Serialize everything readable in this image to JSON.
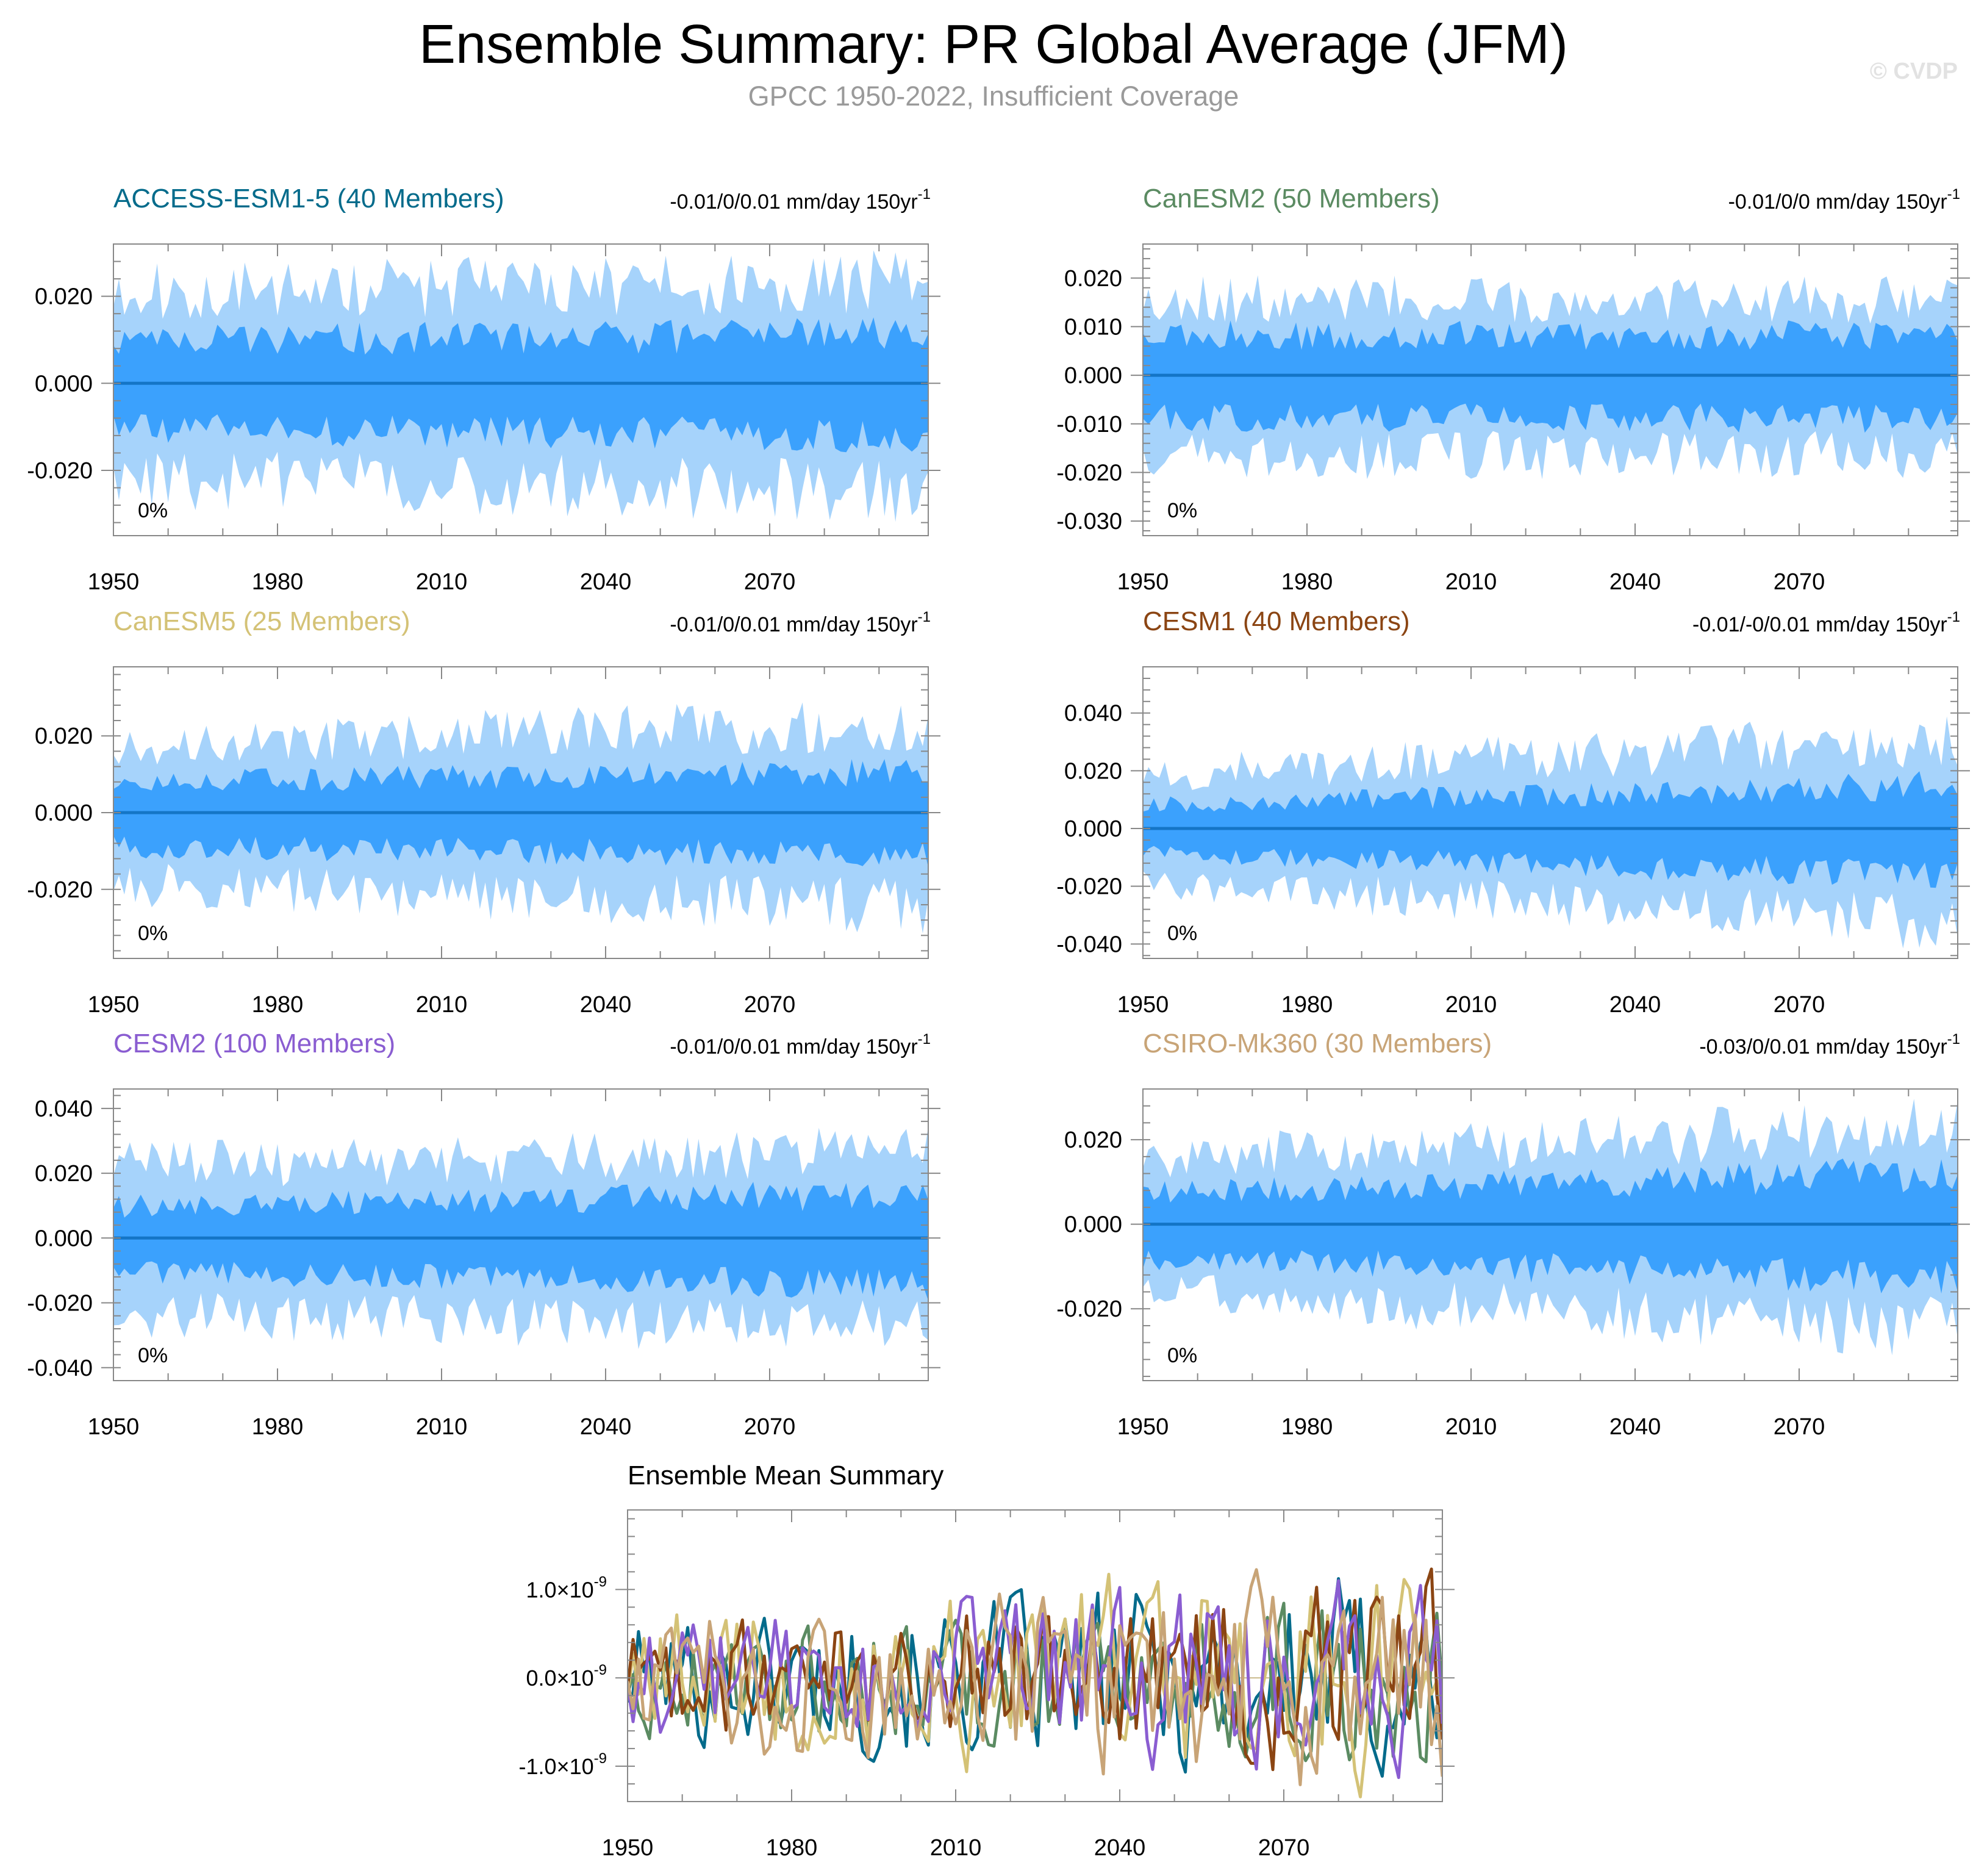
{
  "title": "Ensemble Summary: PR Global Average (JFM)",
  "subtitle": "GPCC 1950-2022, Insufficient Coverage",
  "watermark": "© CVDP",
  "colors": {
    "outer_band": "#a6d3fb",
    "inner_band": "#3ba1fd",
    "mean_line": "#1475c6",
    "axis": "#888888"
  },
  "chart_data": [
    {
      "type": "area",
      "panel": "ACCESS-ESM1-5",
      "title": "ACCESS-ESM1-5 (40 Members)",
      "title_color": "#046b8b",
      "trend_label": "-0.01/0/0.01 mm/day 150yr",
      "trend_sup": "-1",
      "percent_label": "0%",
      "x_range": [
        1950,
        2099
      ],
      "xticks": [
        1950,
        1980,
        2010,
        2040,
        2070
      ],
      "ylim": [
        -0.035,
        0.032
      ],
      "yticks": [
        0.02,
        0,
        -0.02
      ],
      "ytick_labels": [
        "0.020",
        "0.000",
        "-0.020"
      ],
      "ytick_minor_step": 0.004,
      "outer_amp": [
        0.027,
        0.03
      ],
      "inner_amp": [
        0.013,
        0.015
      ],
      "drift": 0.0,
      "seed": 11
    },
    {
      "type": "area",
      "panel": "CanESM2",
      "title": "CanESM2 (50 Members)",
      "title_color": "#5b8b62",
      "trend_label": "-0.01/0/0 mm/day 150yr",
      "trend_sup": "-1",
      "percent_label": "0%",
      "x_range": [
        1950,
        2099
      ],
      "xticks": [
        1950,
        1980,
        2010,
        2040,
        2070
      ],
      "ylim": [
        -0.033,
        0.027
      ],
      "yticks": [
        0.02,
        0.01,
        0,
        -0.01,
        -0.02,
        -0.03
      ],
      "ytick_labels": [
        "0.020",
        "0.010",
        "0.000",
        "-0.010",
        "-0.020",
        "-0.030"
      ],
      "ytick_minor_step": 0.002,
      "outer_amp": [
        0.02,
        0.02
      ],
      "inner_amp": [
        0.011,
        0.011
      ],
      "drift": 0.0,
      "seed": 23
    },
    {
      "type": "area",
      "panel": "CanESM5",
      "title": "CanESM5 (25 Members)",
      "title_color": "#d4c276",
      "trend_label": "-0.01/0/0.01 mm/day 150yr",
      "trend_sup": "-1",
      "percent_label": "0%",
      "x_range": [
        1950,
        2099
      ],
      "xticks": [
        1950,
        1980,
        2010,
        2040,
        2070
      ],
      "ylim": [
        -0.038,
        0.038
      ],
      "yticks": [
        0.02,
        0,
        -0.02
      ],
      "ytick_labels": [
        "0.020",
        "0.000",
        "-0.020"
      ],
      "ytick_minor_step": 0.004,
      "outer_amp": [
        0.023,
        0.03
      ],
      "inner_amp": [
        0.011,
        0.014
      ],
      "drift": 0.0,
      "seed": 37
    },
    {
      "type": "area",
      "panel": "CESM1",
      "title": "CESM1 (40 Members)",
      "title_color": "#8b4513",
      "trend_label": "-0.01/-0/0.01 mm/day 150yr",
      "trend_sup": "-1",
      "percent_label": "0%",
      "x_range": [
        1950,
        2099
      ],
      "xticks": [
        1950,
        1980,
        2010,
        2040,
        2070
      ],
      "ylim": [
        -0.045,
        0.056
      ],
      "yticks": [
        0.04,
        0.02,
        0,
        -0.02,
        -0.04
      ],
      "ytick_labels": [
        "0.040",
        "0.020",
        "0.000",
        "-0.020",
        "-0.040"
      ],
      "ytick_minor_step": 0.004,
      "outer_amp": [
        0.024,
        0.04
      ],
      "inner_amp": [
        0.011,
        0.02
      ],
      "drift": 0.0,
      "seed": 53
    },
    {
      "type": "area",
      "panel": "CESM2",
      "title": "CESM2 (100 Members)",
      "title_color": "#8a5dd1",
      "trend_label": "-0.01/0/0.01 mm/day 150yr",
      "trend_sup": "-1",
      "percent_label": "0%",
      "x_range": [
        1950,
        2099
      ],
      "xticks": [
        1950,
        1980,
        2010,
        2040,
        2070
      ],
      "ylim": [
        -0.044,
        0.046
      ],
      "yticks": [
        0.04,
        0.02,
        0,
        -0.02,
        -0.04
      ],
      "ytick_labels": [
        "0.040",
        "0.020",
        "0.000",
        "-0.020",
        "-0.040"
      ],
      "ytick_minor_step": 0.004,
      "outer_amp": [
        0.029,
        0.034
      ],
      "inner_amp": [
        0.013,
        0.018
      ],
      "drift": 0.0,
      "seed": 71
    },
    {
      "type": "area",
      "panel": "CSIRO-Mk360",
      "title": "CSIRO-Mk360 (30 Members)",
      "title_color": "#c8a477",
      "trend_label": "-0.03/0/0.01 mm/day 150yr",
      "trend_sup": "-1",
      "percent_label": "0%",
      "x_range": [
        1950,
        2099
      ],
      "xticks": [
        1950,
        1980,
        2010,
        2040,
        2070
      ],
      "ylim": [
        -0.037,
        0.032
      ],
      "yticks": [
        0.02,
        0,
        -0.02
      ],
      "ytick_labels": [
        "0.020",
        "0.000",
        "-0.020"
      ],
      "ytick_minor_step": 0.004,
      "outer_amp": [
        0.02,
        0.03
      ],
      "inner_amp": [
        0.01,
        0.016
      ],
      "drift": 0.0,
      "seed": 89
    },
    {
      "type": "line",
      "panel": "ensemble-mean",
      "title": "Ensemble Mean Summary",
      "title_color": "#000000",
      "x_range": [
        1950,
        2099
      ],
      "xticks": [
        1950,
        1980,
        2010,
        2040,
        2070
      ],
      "ylim": [
        -1.4,
        1.9
      ],
      "yunit": "1e-9",
      "yticks": [
        1.0,
        0.0,
        -1.0
      ],
      "ytick_labels": [
        "1.0",
        "0.0",
        "-1.0"
      ],
      "ytick_mult": "×10",
      "ytick_exp": "-9",
      "ytick_minor_step": 0.2,
      "series": [
        {
          "name": "ACCESS-ESM1-5",
          "color": "#046b8b",
          "amp": 0.65,
          "seed": 101
        },
        {
          "name": "CanESM2",
          "color": "#5b8b62",
          "amp": 0.55,
          "seed": 202
        },
        {
          "name": "CanESM5",
          "color": "#d4c276",
          "amp": 0.7,
          "seed": 303
        },
        {
          "name": "CESM1",
          "color": "#8b4513",
          "amp": 0.6,
          "seed": 404
        },
        {
          "name": "CESM2",
          "color": "#8a5dd1",
          "amp": 0.6,
          "seed": 505
        },
        {
          "name": "CSIRO-Mk360",
          "color": "#c8a477",
          "amp": 0.7,
          "seed": 606
        }
      ]
    }
  ]
}
